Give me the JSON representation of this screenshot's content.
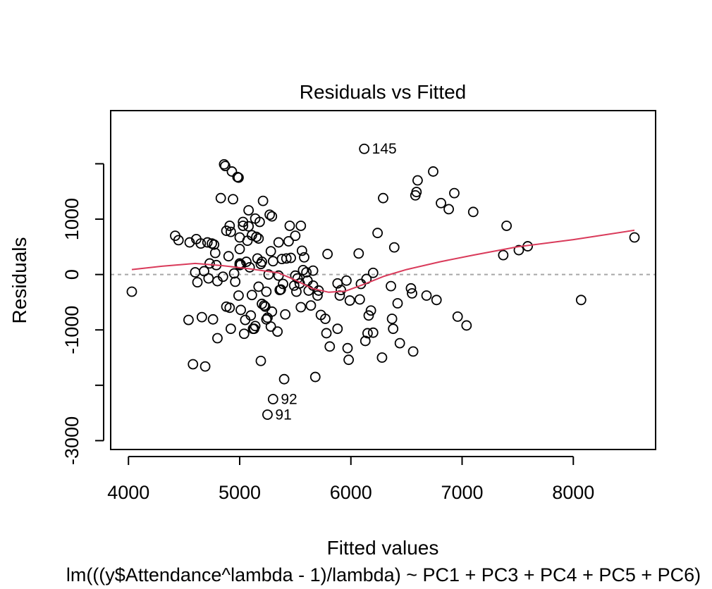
{
  "chart_data": {
    "type": "scatter",
    "title": "Residuals vs Fitted",
    "xlabel": "Fitted values",
    "ylabel": "Residuals",
    "subtitle": "lm(((y$Attendance^lambda - 1)/lambda) ~ PC1 + PC3 + PC4 + PC5 + PC6)",
    "xlim": [
      3840,
      8740
    ],
    "ylim": [
      -3160,
      2960
    ],
    "x_ticks": [
      4000,
      5000,
      6000,
      7000,
      8000
    ],
    "x_tick_labels": [
      "4000",
      "5000",
      "6000",
      "7000",
      "8000"
    ],
    "y_ticks": [
      -3000,
      -1000,
      0,
      1000
    ],
    "y_tick_labels": [
      "-3000",
      "-1000",
      "0",
      "1000"
    ],
    "y_minor_ticks": [
      -2000,
      2000
    ],
    "reference_line_y": 0,
    "colors": {
      "points": "#000000",
      "smooth": "#d93a5a",
      "reference": "#a8a8a8"
    },
    "points": [
      [
        4030,
        -310
      ],
      [
        4420,
        700
      ],
      [
        4450,
        620
      ],
      [
        4540,
        -820
      ],
      [
        4550,
        580
      ],
      [
        4580,
        -1620
      ],
      [
        4600,
        40
      ],
      [
        4610,
        640
      ],
      [
        4620,
        -140
      ],
      [
        4650,
        560
      ],
      [
        4660,
        -770
      ],
      [
        4690,
        -1660
      ],
      [
        4680,
        60
      ],
      [
        4710,
        580
      ],
      [
        4720,
        -70
      ],
      [
        4730,
        200
      ],
      [
        4750,
        560
      ],
      [
        4760,
        -810
      ],
      [
        4770,
        540
      ],
      [
        4780,
        390
      ],
      [
        4790,
        170
      ],
      [
        4800,
        -120
      ],
      [
        4800,
        -1150
      ],
      [
        4830,
        1380
      ],
      [
        4850,
        -40
      ],
      [
        4860,
        1990
      ],
      [
        4870,
        1960
      ],
      [
        4880,
        -580
      ],
      [
        4880,
        790
      ],
      [
        4900,
        330
      ],
      [
        4910,
        880
      ],
      [
        4910,
        -600
      ],
      [
        4920,
        -980
      ],
      [
        4920,
        770
      ],
      [
        4930,
        1860
      ],
      [
        4940,
        1360
      ],
      [
        4950,
        20
      ],
      [
        4960,
        -130
      ],
      [
        4980,
        1760
      ],
      [
        4990,
        1750
      ],
      [
        4990,
        -380
      ],
      [
        5000,
        460
      ],
      [
        5000,
        200
      ],
      [
        5000,
        170
      ],
      [
        5000,
        670
      ],
      [
        5010,
        180
      ],
      [
        5010,
        -640
      ],
      [
        5030,
        950
      ],
      [
        5030,
        880
      ],
      [
        5040,
        -1070
      ],
      [
        5050,
        -820
      ],
      [
        5060,
        230
      ],
      [
        5070,
        610
      ],
      [
        5080,
        870
      ],
      [
        5080,
        1160
      ],
      [
        5090,
        130
      ],
      [
        5100,
        -740
      ],
      [
        5110,
        -370
      ],
      [
        5110,
        710
      ],
      [
        5120,
        -980
      ],
      [
        5130,
        -980
      ],
      [
        5140,
        1010
      ],
      [
        5140,
        -930
      ],
      [
        5150,
        680
      ],
      [
        5160,
        290
      ],
      [
        5170,
        -220
      ],
      [
        5170,
        650
      ],
      [
        5180,
        950
      ],
      [
        5190,
        190
      ],
      [
        5190,
        -1560
      ],
      [
        5200,
        230
      ],
      [
        5200,
        -530
      ],
      [
        5210,
        1330
      ],
      [
        5220,
        -560
      ],
      [
        5230,
        -580
      ],
      [
        5240,
        -310
      ],
      [
        5240,
        -810
      ],
      [
        5250,
        -2530
      ],
      [
        5250,
        -780
      ],
      [
        5260,
        0
      ],
      [
        5270,
        1080
      ],
      [
        5280,
        -940
      ],
      [
        5280,
        420
      ],
      [
        5290,
        1050
      ],
      [
        5290,
        -670
      ],
      [
        5300,
        240
      ],
      [
        5300,
        -2250
      ],
      [
        5340,
        -1030
      ],
      [
        5350,
        580
      ],
      [
        5350,
        -20
      ],
      [
        5360,
        -280
      ],
      [
        5370,
        -270
      ],
      [
        5380,
        280
      ],
      [
        5390,
        -170
      ],
      [
        5400,
        -1890
      ],
      [
        5410,
        -720
      ],
      [
        5420,
        290
      ],
      [
        5440,
        600
      ],
      [
        5450,
        880
      ],
      [
        5460,
        300
      ],
      [
        5490,
        -200
      ],
      [
        5500,
        -20
      ],
      [
        5500,
        700
      ],
      [
        5510,
        -310
      ],
      [
        5520,
        -70
      ],
      [
        5540,
        -160
      ],
      [
        5550,
        -590
      ],
      [
        5550,
        880
      ],
      [
        5560,
        430
      ],
      [
        5570,
        80
      ],
      [
        5580,
        310
      ],
      [
        5600,
        40
      ],
      [
        5610,
        -110
      ],
      [
        5620,
        -290
      ],
      [
        5640,
        -560
      ],
      [
        5660,
        70
      ],
      [
        5660,
        -200
      ],
      [
        5680,
        -1850
      ],
      [
        5700,
        -380
      ],
      [
        5710,
        -290
      ],
      [
        5730,
        -730
      ],
      [
        5770,
        -800
      ],
      [
        5780,
        -1060
      ],
      [
        5790,
        370
      ],
      [
        5810,
        -1300
      ],
      [
        5880,
        -980
      ],
      [
        5880,
        -160
      ],
      [
        5900,
        -380
      ],
      [
        5910,
        -280
      ],
      [
        5960,
        -110
      ],
      [
        5970,
        -1330
      ],
      [
        5980,
        -1540
      ],
      [
        5990,
        -470
      ],
      [
        6070,
        380
      ],
      [
        6080,
        -450
      ],
      [
        6090,
        -170
      ],
      [
        6120,
        2270
      ],
      [
        6130,
        -1200
      ],
      [
        6140,
        -80
      ],
      [
        6150,
        -1060
      ],
      [
        6160,
        -740
      ],
      [
        6180,
        -650
      ],
      [
        6200,
        30
      ],
      [
        6200,
        -1050
      ],
      [
        6240,
        750
      ],
      [
        6280,
        -1500
      ],
      [
        6290,
        1380
      ],
      [
        6360,
        -210
      ],
      [
        6370,
        -800
      ],
      [
        6380,
        -980
      ],
      [
        6390,
        490
      ],
      [
        6420,
        -520
      ],
      [
        6440,
        -1240
      ],
      [
        6540,
        -250
      ],
      [
        6550,
        -340
      ],
      [
        6560,
        -1390
      ],
      [
        6580,
        1430
      ],
      [
        6590,
        1490
      ],
      [
        6600,
        1700
      ],
      [
        6680,
        -380
      ],
      [
        6740,
        1860
      ],
      [
        6770,
        -460
      ],
      [
        6810,
        1290
      ],
      [
        6880,
        1180
      ],
      [
        6930,
        1470
      ],
      [
        6960,
        -760
      ],
      [
        7040,
        -920
      ],
      [
        7100,
        1130
      ],
      [
        7370,
        350
      ],
      [
        7400,
        880
      ],
      [
        7510,
        440
      ],
      [
        7590,
        510
      ],
      [
        8070,
        -460
      ],
      [
        8550,
        670
      ]
    ],
    "labeled_points": [
      {
        "label": "145",
        "x": 6120,
        "y": 2270
      },
      {
        "label": "92",
        "x": 5300,
        "y": 2250,
        "y_sign": -1
      },
      {
        "label": "91",
        "x": 5250,
        "y": 2530,
        "y_sign": -1
      }
    ],
    "smooth_line": [
      [
        4030,
        90
      ],
      [
        4300,
        150
      ],
      [
        4600,
        200
      ],
      [
        4850,
        160
      ],
      [
        5100,
        100
      ],
      [
        5350,
        30
      ],
      [
        5500,
        -100
      ],
      [
        5650,
        -250
      ],
      [
        5800,
        -320
      ],
      [
        5950,
        -300
      ],
      [
        6100,
        -190
      ],
      [
        6300,
        -30
      ],
      [
        6500,
        90
      ],
      [
        6800,
        230
      ],
      [
        7100,
        350
      ],
      [
        7500,
        500
      ],
      [
        8000,
        630
      ],
      [
        8550,
        800
      ]
    ]
  }
}
